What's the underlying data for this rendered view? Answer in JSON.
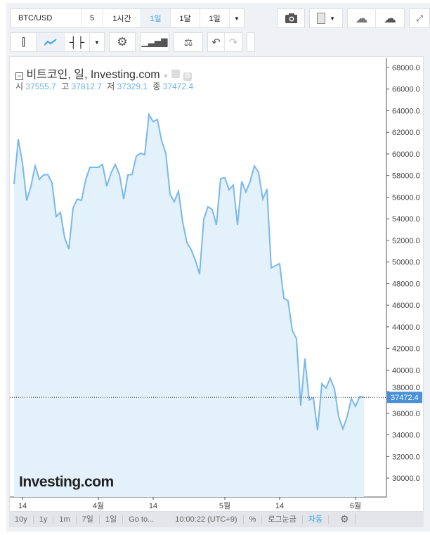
{
  "toolbar": {
    "symbol": "BTC/USD",
    "intervals": [
      "5",
      "1시간",
      "1일",
      "1달",
      "1일"
    ],
    "active_interval": "1일"
  },
  "legend": {
    "title": "비트코인, 일, Investing.com",
    "labels": {
      "open": "시",
      "high": "고",
      "low": "저",
      "close": "종"
    },
    "values": {
      "open": "37555.7",
      "high": "37812.7",
      "low": "37329.1",
      "close": "37472.4"
    }
  },
  "bottom": {
    "ranges": [
      "10y",
      "1y",
      "1m",
      "7일",
      "1일"
    ],
    "goto": "Go to...",
    "time": "10:00:22 (UTC+9)",
    "percent": "%",
    "log": "로그눈금",
    "auto": "자동"
  },
  "watermark": "Investing.com",
  "colors": {
    "line": "#7ab8ea",
    "fill": "#e2f1fa",
    "accent": "#3aa3e3",
    "price_tag": "#4a90d9"
  },
  "chart_data": {
    "type": "area",
    "ylim": [
      28000,
      69000
    ],
    "yticks": [
      30000,
      32000,
      34000,
      36000,
      38000,
      40000,
      42000,
      44000,
      46000,
      48000,
      50000,
      52000,
      54000,
      56000,
      58000,
      60000,
      62000,
      64000,
      66000,
      68000
    ],
    "xticks": [
      {
        "label": "14",
        "date": "3/14"
      },
      {
        "label": "4월",
        "date": "4/1"
      },
      {
        "label": "14",
        "date": "4/14"
      },
      {
        "label": "5월",
        "date": "5/1"
      },
      {
        "label": "14",
        "date": "5/14"
      },
      {
        "label": "6월",
        "date": "6/1"
      }
    ],
    "last_price": "37472.4",
    "values": [
      57200,
      61360,
      59150,
      55700,
      57000,
      58900,
      57650,
      58050,
      58100,
      57330,
      54200,
      54600,
      52250,
      51200,
      55000,
      55830,
      55700,
      57600,
      58760,
      58760,
      58760,
      59020,
      57000,
      58240,
      59020,
      58100,
      55830,
      58050,
      58100,
      59800,
      60060,
      59930,
      63640,
      62990,
      63190,
      61230,
      60060,
      56290,
      55570,
      56550,
      53690,
      51800,
      51150,
      50170,
      48870,
      53950,
      55120,
      54860,
      53430,
      57720,
      57790,
      56680,
      57130,
      53430,
      57460,
      56480,
      57460,
      58900,
      58300,
      55830,
      56740,
      49460,
      49650,
      49850,
      46660,
      46400,
      43670,
      42890,
      36710,
      41070,
      37230,
      37420,
      34430,
      38720,
      38330,
      39240,
      38270,
      35670,
      34560,
      35670,
      37360,
      36640,
      37550,
      37470
    ]
  }
}
